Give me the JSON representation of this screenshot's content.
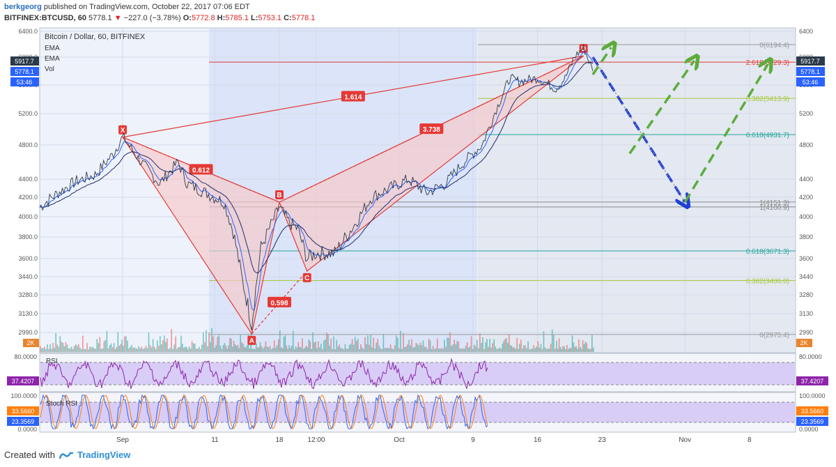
{
  "header": {
    "author": "berkgeorg",
    "published": "published on TradingView.com, October 22, 2017 07:06 EDT",
    "symbol": "BITFINEX:BTCUSD, 60",
    "last": "5778.1",
    "change": "−227.0 (−3.78%)",
    "o_label": "O:",
    "o": "5772.8",
    "h_label": "H:",
    "h": "5785.1",
    "l_label": "L:",
    "l": "5753.1",
    "c_label": "C:",
    "c": "5778.1"
  },
  "legend": {
    "title": "Bitcoin / Dollar, 60, BITFINEX",
    "ema1": "EMA",
    "ema2": "EMA",
    "vol": "Vol"
  },
  "price_badges": {
    "left": [
      "5917.7",
      "5778.1",
      "53:46"
    ],
    "right": [
      "5917.7",
      "5778.1",
      "53:46"
    ],
    "volume": "2K"
  },
  "footer": {
    "created": "Created with",
    "brand": "TradingView"
  },
  "colors": {
    "up": "#26a69a",
    "down": "#ef5350",
    "pattern": "#e53935",
    "fill": "#f8c7c7",
    "green_arrow": "#5cac3c",
    "blue_arrow": "#1f3fd6",
    "rsi": "#8e24aa",
    "stoch_k": "#2962ff",
    "stoch_d": "#ff7f0e"
  },
  "chart_data": {
    "type": "line",
    "title": "Bitcoin / Dollar, 60, BITFINEX",
    "y_ticks": [
      6400,
      6000,
      5600,
      5200,
      4800,
      4400,
      4200,
      4000,
      3800,
      3600,
      3440,
      3280,
      3130,
      2990
    ],
    "x_ticks": [
      "Sep",
      "11",
      "18",
      "12:00",
      "Oct",
      "9",
      "16",
      "23",
      "Nov",
      "8"
    ],
    "x_tick_dates": [
      "2017-09-01",
      "2017-09-11",
      "2017-09-18",
      "2017-09-22",
      "2017-10-01",
      "2017-10-09",
      "2017-10-16",
      "2017-10-23",
      "2017-11-01",
      "2017-11-08"
    ],
    "ylim": [
      2880,
      6450
    ],
    "pattern": {
      "name": "bearish harmonic XABCD",
      "points": [
        {
          "label": "X",
          "date": "2017-09-01",
          "price": 4900
        },
        {
          "label": "A",
          "date": "2017-09-15",
          "price": 2980
        },
        {
          "label": "B",
          "date": "2017-09-18",
          "price": 4150
        },
        {
          "label": "C",
          "date": "2017-09-21",
          "price": 3490
        },
        {
          "label": "D",
          "date": "2017-10-21",
          "price": 6020
        }
      ],
      "ratios": [
        {
          "text": "1.614",
          "between": "X-D"
        },
        {
          "text": "0.612",
          "between": "X-B"
        },
        {
          "text": "3.738",
          "between": "B-D"
        },
        {
          "text": "0.598",
          "between": "A-C"
        }
      ]
    },
    "fib_levels": [
      {
        "label": "0(6194.4)",
        "price": 6194.4
      },
      {
        "label": "2.618(5929.3)",
        "price": 5929.3
      },
      {
        "label": "0.382(5413.9)",
        "price": 5413.9
      },
      {
        "label": "0.618(4931.7)",
        "price": 4931.7
      },
      {
        "label": "1(4151.3)",
        "price": 4151.3
      },
      {
        "label": "1(4100.9)",
        "price": 4100.9
      },
      {
        "label": "0.618(3671.3)",
        "price": 3671.3
      },
      {
        "label": "0.382(3406.0)",
        "price": 3406.0
      },
      {
        "label": "0(2975.4)",
        "price": 2975.4
      }
    ],
    "price_path": [
      [
        "2017-08-23",
        4100
      ],
      [
        "2017-08-25",
        4250
      ],
      [
        "2017-08-27",
        4380
      ],
      [
        "2017-08-29",
        4450
      ],
      [
        "2017-08-31",
        4700
      ],
      [
        "2017-09-01",
        4900
      ],
      [
        "2017-09-03",
        4600
      ],
      [
        "2017-09-05",
        4350
      ],
      [
        "2017-09-07",
        4600
      ],
      [
        "2017-09-08",
        4350
      ],
      [
        "2017-09-10",
        4250
      ],
      [
        "2017-09-12",
        4150
      ],
      [
        "2017-09-13",
        3850
      ],
      [
        "2017-09-14",
        3400
      ],
      [
        "2017-09-15",
        3050
      ],
      [
        "2017-09-16",
        3700
      ],
      [
        "2017-09-18",
        4100
      ],
      [
        "2017-09-19",
        3950
      ],
      [
        "2017-09-20",
        3880
      ],
      [
        "2017-09-21",
        3600
      ],
      [
        "2017-09-22",
        3650
      ],
      [
        "2017-09-24",
        3650
      ],
      [
        "2017-09-26",
        3900
      ],
      [
        "2017-09-28",
        4200
      ],
      [
        "2017-09-30",
        4300
      ],
      [
        "2017-10-02",
        4400
      ],
      [
        "2017-10-04",
        4250
      ],
      [
        "2017-10-06",
        4350
      ],
      [
        "2017-10-08",
        4600
      ],
      [
        "2017-10-10",
        4800
      ],
      [
        "2017-10-12",
        5400
      ],
      [
        "2017-10-13",
        5700
      ],
      [
        "2017-10-14",
        5650
      ],
      [
        "2017-10-16",
        5700
      ],
      [
        "2017-10-18",
        5550
      ],
      [
        "2017-10-19",
        5700
      ],
      [
        "2017-10-20",
        6000
      ],
      [
        "2017-10-21",
        6150
      ],
      [
        "2017-10-22",
        5800
      ]
    ],
    "projection": [
      {
        "from": [
          "2017-10-22",
          6000
        ],
        "to": [
          "2017-11-01",
          4150
        ],
        "color": "blue"
      },
      {
        "from": [
          "2017-11-01",
          4150
        ],
        "to": [
          "2017-11-10",
          5900
        ],
        "color": "green"
      },
      {
        "from": [
          "2017-10-22",
          5750
        ],
        "to": [
          "2017-10-24",
          6150
        ],
        "color": "green"
      },
      {
        "from": [
          "2017-10-26",
          4700
        ],
        "to": [
          "2017-11-02",
          5950
        ],
        "color": "green"
      }
    ],
    "rsi": {
      "name": "RSI",
      "ticks": [
        80,
        37.4207
      ],
      "last": "37.4207",
      "tick_label": "80.0000"
    },
    "stoch_rsi": {
      "name": "Stoch RSI",
      "ticks": [
        100,
        0
      ],
      "last_k": "33.5660",
      "last_d": "23.3569",
      "tick_labels": [
        "100.0000",
        "0.0000"
      ]
    }
  }
}
